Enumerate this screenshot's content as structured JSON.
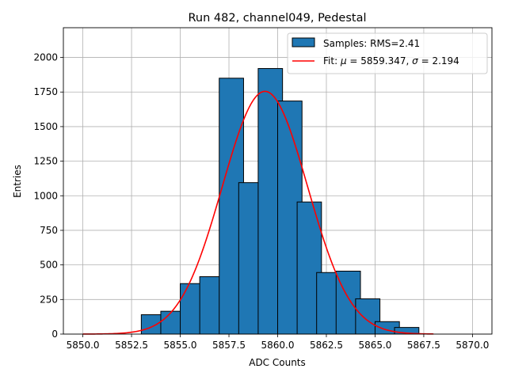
{
  "chart_data": {
    "type": "bar",
    "title": "Run 482, channel049, Pedestal",
    "xlabel": "ADC Counts",
    "ylabel": "Entries",
    "xlim": [
      5849.0,
      5871.0
    ],
    "ylim": [
      0,
      2215
    ],
    "xticks": [
      5850.0,
      5852.5,
      5855.0,
      5857.5,
      5860.0,
      5862.5,
      5865.0,
      5867.5,
      5870.0
    ],
    "xtick_labels": [
      "5850.0",
      "5852.5",
      "5855.0",
      "5857.5",
      "5860.0",
      "5862.5",
      "5865.0",
      "5867.5",
      "5870.0"
    ],
    "yticks": [
      0,
      250,
      500,
      750,
      1000,
      1250,
      1500,
      1750,
      2000
    ],
    "ytick_labels": [
      "0",
      "250",
      "500",
      "750",
      "1000",
      "1250",
      "1500",
      "1750",
      "2000"
    ],
    "grid": true,
    "legend_position": "top-right",
    "bin_width": 1.25,
    "bins": [
      {
        "left": 5853.0,
        "count": 140
      },
      {
        "left": 5854.0,
        "count": 165
      },
      {
        "left": 5855.0,
        "count": 365
      },
      {
        "left": 5856.0,
        "count": 415
      },
      {
        "left": 5857.0,
        "count": 1850
      },
      {
        "left": 5858.0,
        "count": 1095
      },
      {
        "left": 5859.0,
        "count": 1920
      },
      {
        "left": 5860.0,
        "count": 1685
      },
      {
        "left": 5861.0,
        "count": 955
      },
      {
        "left": 5862.0,
        "count": 445
      },
      {
        "left": 5863.0,
        "count": 455
      },
      {
        "left": 5864.0,
        "count": 255
      },
      {
        "left": 5865.0,
        "count": 90
      },
      {
        "left": 5866.0,
        "count": 48
      }
    ],
    "series": [
      {
        "name": "Samples: RMS=2.41",
        "kind": "histogram",
        "color": "#1f77b4"
      },
      {
        "name": "Fit: μ = 5859.347, σ = 2.194",
        "kind": "gaussian-fit",
        "color": "#ff0000",
        "amplitude": 1755,
        "mu": 5859.347,
        "sigma": 2.194,
        "x_range": [
          5850.0,
          5868.0
        ]
      }
    ],
    "legend": {
      "samples_label": "Samples: RMS=2.41",
      "fit_prefix": "Fit: ",
      "mu_symbol": "μ",
      "mu_text": " = 5859.347, ",
      "sigma_symbol": "σ",
      "sigma_text": " = 2.194"
    }
  }
}
